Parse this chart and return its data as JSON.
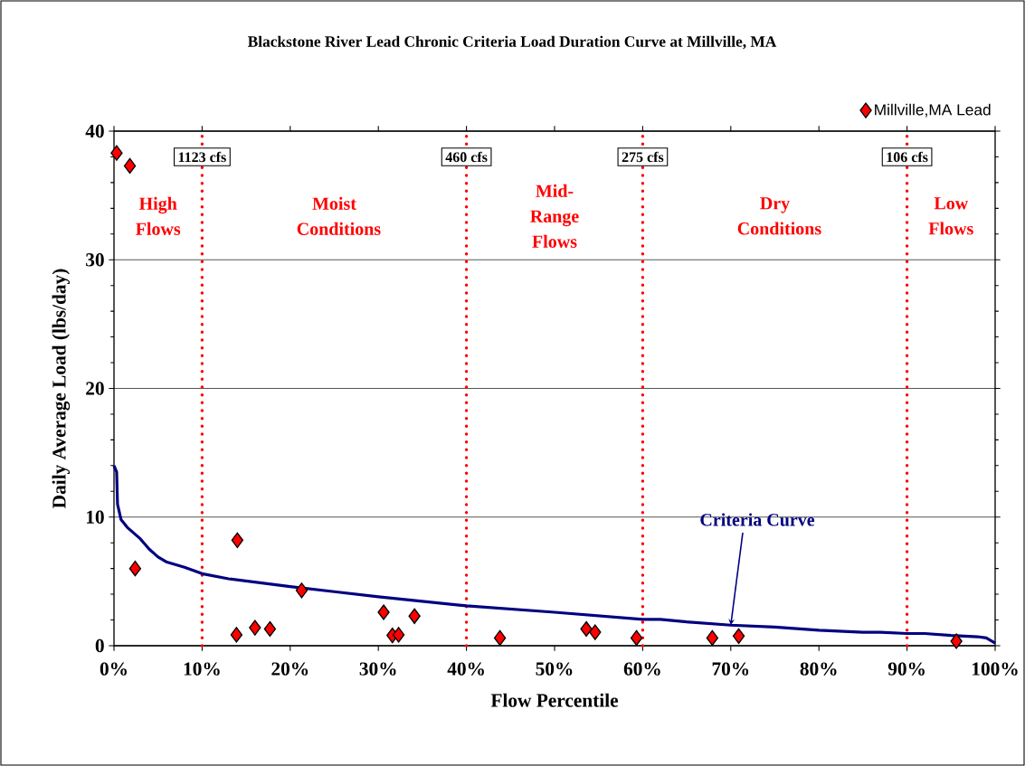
{
  "chart_data": {
    "type": "scatter",
    "title": "Blackstone River Lead Chronic Criteria Load Duration Curve at Millville, MA",
    "xlabel": "Flow Percentile",
    "ylabel": "Daily Average Load (lbs/day)",
    "xlim": [
      0,
      100
    ],
    "ylim": [
      0,
      40
    ],
    "xticks": [
      {
        "value": 0,
        "label": "0%"
      },
      {
        "value": 10,
        "label": "10%"
      },
      {
        "value": 20,
        "label": "20%"
      },
      {
        "value": 30,
        "label": "30%"
      },
      {
        "value": 40,
        "label": "40%"
      },
      {
        "value": 50,
        "label": "50%"
      },
      {
        "value": 60,
        "label": "60%"
      },
      {
        "value": 70,
        "label": "70%"
      },
      {
        "value": 80,
        "label": "80%"
      },
      {
        "value": 90,
        "label": "90%"
      },
      {
        "value": 100,
        "label": "100%"
      }
    ],
    "yticks": [
      0,
      10,
      20,
      30,
      40
    ],
    "grid": "y",
    "legend": "top right",
    "series": [
      {
        "name": "Millville,MA Lead",
        "marker": "diamond",
        "color": "#ff0000",
        "x": [
          0.3,
          1.8,
          2.4,
          14.0,
          13.9,
          16.0,
          17.7,
          21.3,
          30.6,
          31.6,
          32.3,
          34.1,
          43.8,
          53.6,
          54.6,
          59.3,
          67.9,
          70.9,
          95.6
        ],
        "values": [
          38.3,
          37.3,
          6.0,
          8.2,
          0.85,
          1.4,
          1.3,
          4.3,
          2.6,
          0.8,
          0.85,
          2.3,
          0.6,
          1.3,
          1.05,
          0.6,
          0.6,
          0.75,
          0.35
        ]
      },
      {
        "type": "line",
        "color": "#000080",
        "x": [
          0,
          0.3,
          0.4,
          0.8,
          1.5,
          3,
          4,
          5,
          6,
          8,
          10,
          13,
          20,
          25,
          30,
          40,
          50,
          60,
          62,
          65,
          70,
          75,
          80,
          85,
          87,
          90,
          92,
          95,
          98,
          99,
          100
        ],
        "values": [
          14,
          13.5,
          11,
          9.8,
          9.2,
          8.3,
          7.5,
          6.9,
          6.5,
          6.1,
          5.6,
          5.2,
          4.6,
          4.2,
          3.8,
          3.1,
          2.6,
          2.05,
          2.05,
          1.85,
          1.6,
          1.45,
          1.2,
          1.05,
          1.05,
          0.95,
          0.95,
          0.8,
          0.7,
          0.6,
          0.2
        ]
      }
    ],
    "ref_lines": [
      {
        "axis": "x",
        "value": 10,
        "label": "1123 cfs",
        "color": "#ff0000",
        "line_style": "dotted"
      },
      {
        "axis": "x",
        "value": 40,
        "label": "460 cfs",
        "color": "#ff0000",
        "line_style": "dotted"
      },
      {
        "axis": "x",
        "value": 60,
        "label": "275 cfs",
        "color": "#ff0000",
        "line_style": "dotted"
      },
      {
        "axis": "x",
        "value": 90,
        "label": "106 cfs",
        "color": "#ff0000",
        "line_style": "dotted"
      }
    ],
    "annotations": [
      "High Flows",
      "Moist Conditions",
      "Mid-Range Flows",
      "Dry Conditions",
      "Low Flows",
      {
        "text": "Criteria Curve",
        "x": 70,
        "y": 1.6
      }
    ]
  }
}
